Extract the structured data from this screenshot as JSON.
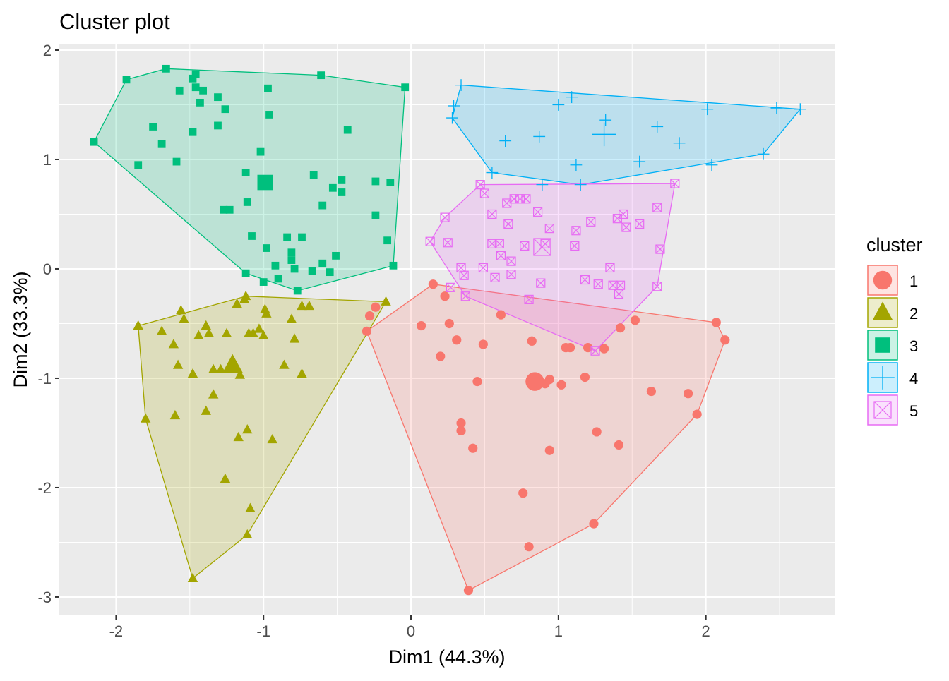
{
  "chart_data": {
    "type": "scatter",
    "title": "Cluster plot",
    "xlabel": "Dim1 (44.3%)",
    "ylabel": "Dim2 (33.3%)",
    "xlim": [
      -2.385,
      2.878
    ],
    "ylim": [
      -3.168,
      2.058
    ],
    "xticks": [
      -2,
      -1,
      0,
      1,
      2
    ],
    "yticks": [
      -3,
      -2,
      -1,
      0,
      1,
      2
    ],
    "xtick_labels": [
      "-2",
      "-1",
      "0",
      "1",
      "2"
    ],
    "ytick_labels": [
      "-3",
      "-2",
      "-1",
      "0",
      "1",
      "2"
    ],
    "grid": true,
    "legend": {
      "title": "cluster",
      "placement": "right"
    },
    "series": [
      {
        "name": "1",
        "shape": "circle",
        "color": "#F8766D",
        "medoid": [
          0.84,
          -1.03
        ],
        "hull": [
          [
            -0.3,
            -0.57
          ],
          [
            0.15,
            -0.14
          ],
          [
            2.07,
            -0.49
          ],
          [
            2.13,
            -0.65
          ],
          [
            1.94,
            -1.33
          ],
          [
            1.24,
            -2.33
          ],
          [
            0.39,
            -2.94
          ]
        ],
        "points": [
          [
            -0.3,
            -0.57
          ],
          [
            0.15,
            -0.14
          ],
          [
            2.07,
            -0.49
          ],
          [
            2.13,
            -0.65
          ],
          [
            1.94,
            -1.33
          ],
          [
            1.24,
            -2.33
          ],
          [
            0.39,
            -2.94
          ],
          [
            -0.28,
            -0.43
          ],
          [
            -0.24,
            -0.35
          ],
          [
            0.23,
            -0.25
          ],
          [
            0.07,
            -0.52
          ],
          [
            0.26,
            -0.5
          ],
          [
            0.2,
            -0.8
          ],
          [
            0.31,
            -0.65
          ],
          [
            0.49,
            -0.69
          ],
          [
            0.61,
            -0.42
          ],
          [
            0.82,
            -0.66
          ],
          [
            1.05,
            -0.72
          ],
          [
            1.08,
            -0.72
          ],
          [
            1.2,
            -0.72
          ],
          [
            1.31,
            -0.73
          ],
          [
            1.42,
            -0.54
          ],
          [
            1.52,
            -0.47
          ],
          [
            0.45,
            -1.03
          ],
          [
            0.91,
            -1.05
          ],
          [
            0.94,
            -1.01
          ],
          [
            1.02,
            -1.06
          ],
          [
            1.18,
            -0.99
          ],
          [
            1.63,
            -1.12
          ],
          [
            1.88,
            -1.14
          ],
          [
            0.34,
            -1.41
          ],
          [
            0.34,
            -1.48
          ],
          [
            0.42,
            -1.64
          ],
          [
            0.94,
            -1.66
          ],
          [
            1.26,
            -1.49
          ],
          [
            1.41,
            -1.61
          ],
          [
            0.76,
            -2.05
          ],
          [
            0.8,
            -2.54
          ]
        ]
      },
      {
        "name": "2",
        "shape": "triangle",
        "color": "#A3A500",
        "medoid": [
          -1.21,
          -0.88
        ],
        "hull": [
          [
            -1.85,
            -0.52
          ],
          [
            -1.12,
            -0.25
          ],
          [
            -0.17,
            -0.3
          ],
          [
            -1.11,
            -2.43
          ],
          [
            -1.48,
            -2.83
          ],
          [
            -1.8,
            -1.37
          ]
        ],
        "points": [
          [
            -1.85,
            -0.52
          ],
          [
            -1.12,
            -0.25
          ],
          [
            -0.17,
            -0.3
          ],
          [
            -1.11,
            -2.43
          ],
          [
            -1.48,
            -2.83
          ],
          [
            -1.8,
            -1.37
          ],
          [
            -1.56,
            -0.38
          ],
          [
            -1.18,
            -0.32
          ],
          [
            -1.13,
            -0.28
          ],
          [
            -0.99,
            -0.37
          ],
          [
            -0.98,
            -0.41
          ],
          [
            -0.74,
            -0.34
          ],
          [
            -0.69,
            -0.34
          ],
          [
            -1.54,
            -0.46
          ],
          [
            -0.81,
            -0.46
          ],
          [
            -1.69,
            -0.57
          ],
          [
            -1.39,
            -0.52
          ],
          [
            -1.44,
            -0.61
          ],
          [
            -1.37,
            -0.59
          ],
          [
            -1.25,
            -0.59
          ],
          [
            -1.1,
            -0.59
          ],
          [
            -1.07,
            -0.59
          ],
          [
            -1.03,
            -0.55
          ],
          [
            -1.61,
            -0.69
          ],
          [
            -1.0,
            -0.61
          ],
          [
            -0.79,
            -0.64
          ],
          [
            -1.58,
            -0.88
          ],
          [
            -1.48,
            -0.96
          ],
          [
            -1.34,
            -0.92
          ],
          [
            -1.29,
            -0.92
          ],
          [
            -1.16,
            -0.97
          ],
          [
            -0.86,
            -0.88
          ],
          [
            -0.74,
            -0.96
          ],
          [
            -1.34,
            -1.15
          ],
          [
            -1.6,
            -1.34
          ],
          [
            -1.39,
            -1.3
          ],
          [
            -1.11,
            -1.47
          ],
          [
            -1.17,
            -1.54
          ],
          [
            -0.94,
            -1.56
          ],
          [
            -1.26,
            -1.92
          ],
          [
            -1.09,
            -2.19
          ]
        ]
      },
      {
        "name": "3",
        "shape": "square",
        "color": "#00BF7D",
        "medoid": [
          -0.99,
          0.79
        ],
        "hull": [
          [
            -2.15,
            1.16
          ],
          [
            -1.93,
            1.73
          ],
          [
            -1.66,
            1.83
          ],
          [
            -0.61,
            1.77
          ],
          [
            -0.04,
            1.66
          ],
          [
            -0.12,
            0.03
          ],
          [
            -0.77,
            -0.2
          ],
          [
            -1.12,
            -0.04
          ]
        ],
        "points": [
          [
            -2.15,
            1.16
          ],
          [
            -1.93,
            1.73
          ],
          [
            -1.66,
            1.83
          ],
          [
            -0.61,
            1.77
          ],
          [
            -0.04,
            1.66
          ],
          [
            -0.12,
            0.03
          ],
          [
            -0.77,
            -0.2
          ],
          [
            -1.12,
            -0.04
          ],
          [
            -1.57,
            1.63
          ],
          [
            -1.46,
            1.78
          ],
          [
            -1.48,
            1.74
          ],
          [
            -1.46,
            1.66
          ],
          [
            -1.41,
            1.63
          ],
          [
            -1.43,
            1.52
          ],
          [
            -1.31,
            1.57
          ],
          [
            -1.26,
            1.46
          ],
          [
            -0.97,
            1.65
          ],
          [
            -0.96,
            1.41
          ],
          [
            -1.75,
            1.3
          ],
          [
            -1.69,
            1.14
          ],
          [
            -1.48,
            1.25
          ],
          [
            -1.31,
            1.31
          ],
          [
            -1.85,
            0.95
          ],
          [
            -1.59,
            0.98
          ],
          [
            -1.02,
            1.07
          ],
          [
            -0.43,
            1.27
          ],
          [
            -1.12,
            0.88
          ],
          [
            -0.66,
            0.86
          ],
          [
            -0.47,
            0.81
          ],
          [
            -0.53,
            0.74
          ],
          [
            -0.47,
            0.7
          ],
          [
            -0.24,
            0.8
          ],
          [
            -0.14,
            0.79
          ],
          [
            -1.11,
            0.61
          ],
          [
            -0.6,
            0.58
          ],
          [
            -1.27,
            0.54
          ],
          [
            -1.23,
            0.54
          ],
          [
            -0.24,
            0.49
          ],
          [
            -1.08,
            0.3
          ],
          [
            -0.84,
            0.29
          ],
          [
            -0.74,
            0.29
          ],
          [
            -0.16,
            0.26
          ],
          [
            -0.98,
            0.19
          ],
          [
            -0.81,
            0.15
          ],
          [
            -0.51,
            0.12
          ],
          [
            -0.81,
            0.08
          ],
          [
            -0.6,
            0.05
          ],
          [
            -0.92,
            0.03
          ],
          [
            -0.79,
            0.0
          ],
          [
            -0.67,
            -0.02
          ],
          [
            -0.55,
            -0.03
          ],
          [
            -0.9,
            -0.09
          ],
          [
            -1.0,
            -0.12
          ]
        ]
      },
      {
        "name": "4",
        "shape": "plus",
        "color": "#00B0F6",
        "medoid": [
          1.31,
          1.23
        ],
        "hull": [
          [
            0.28,
            1.38
          ],
          [
            0.34,
            1.68
          ],
          [
            2.64,
            1.46
          ],
          [
            2.39,
            1.05
          ],
          [
            1.15,
            0.77
          ],
          [
            0.55,
            0.88
          ]
        ],
        "points": [
          [
            0.28,
            1.38
          ],
          [
            0.34,
            1.68
          ],
          [
            2.64,
            1.46
          ],
          [
            2.39,
            1.05
          ],
          [
            1.15,
            0.77
          ],
          [
            0.55,
            0.88
          ],
          [
            0.29,
            1.49
          ],
          [
            1.0,
            1.5
          ],
          [
            1.09,
            1.57
          ],
          [
            2.01,
            1.46
          ],
          [
            2.48,
            1.47
          ],
          [
            1.32,
            1.36
          ],
          [
            1.67,
            1.3
          ],
          [
            0.87,
            1.21
          ],
          [
            0.64,
            1.17
          ],
          [
            1.82,
            1.15
          ],
          [
            1.12,
            0.95
          ],
          [
            1.55,
            0.98
          ],
          [
            2.04,
            0.95
          ],
          [
            0.89,
            0.77
          ]
        ]
      },
      {
        "name": "5",
        "shape": "boxed-x",
        "color": "#E76BF3",
        "medoid": [
          0.89,
          0.2
        ],
        "hull": [
          [
            0.13,
            0.25
          ],
          [
            0.23,
            0.47
          ],
          [
            0.47,
            0.77
          ],
          [
            1.79,
            0.78
          ],
          [
            1.67,
            -0.16
          ],
          [
            1.25,
            -0.75
          ],
          [
            0.37,
            -0.25
          ]
        ],
        "points": [
          [
            0.13,
            0.25
          ],
          [
            0.23,
            0.47
          ],
          [
            0.47,
            0.77
          ],
          [
            1.79,
            0.78
          ],
          [
            1.67,
            -0.16
          ],
          [
            1.25,
            -0.75
          ],
          [
            0.37,
            -0.25
          ],
          [
            0.5,
            0.69
          ],
          [
            0.55,
            0.5
          ],
          [
            0.65,
            0.6
          ],
          [
            0.7,
            0.64
          ],
          [
            0.74,
            0.64
          ],
          [
            0.78,
            0.64
          ],
          [
            0.86,
            0.52
          ],
          [
            0.66,
            0.41
          ],
          [
            0.94,
            0.37
          ],
          [
            1.12,
            0.35
          ],
          [
            1.22,
            0.43
          ],
          [
            1.44,
            0.5
          ],
          [
            1.4,
            0.46
          ],
          [
            1.46,
            0.38
          ],
          [
            1.55,
            0.41
          ],
          [
            1.67,
            0.56
          ],
          [
            0.25,
            0.24
          ],
          [
            0.55,
            0.23
          ],
          [
            0.6,
            0.23
          ],
          [
            0.77,
            0.21
          ],
          [
            0.91,
            0.23
          ],
          [
            1.11,
            0.21
          ],
          [
            0.61,
            0.12
          ],
          [
            0.68,
            0.07
          ],
          [
            1.69,
            0.18
          ],
          [
            0.34,
            0.01
          ],
          [
            0.49,
            0.01
          ],
          [
            1.35,
            0.01
          ],
          [
            0.36,
            -0.06
          ],
          [
            0.57,
            -0.08
          ],
          [
            0.68,
            -0.05
          ],
          [
            0.88,
            -0.13
          ],
          [
            1.18,
            -0.1
          ],
          [
            1.27,
            -0.14
          ],
          [
            1.37,
            -0.15
          ],
          [
            1.42,
            -0.15
          ],
          [
            0.27,
            -0.17
          ],
          [
            1.41,
            -0.23
          ],
          [
            0.8,
            -0.28
          ]
        ]
      }
    ]
  }
}
